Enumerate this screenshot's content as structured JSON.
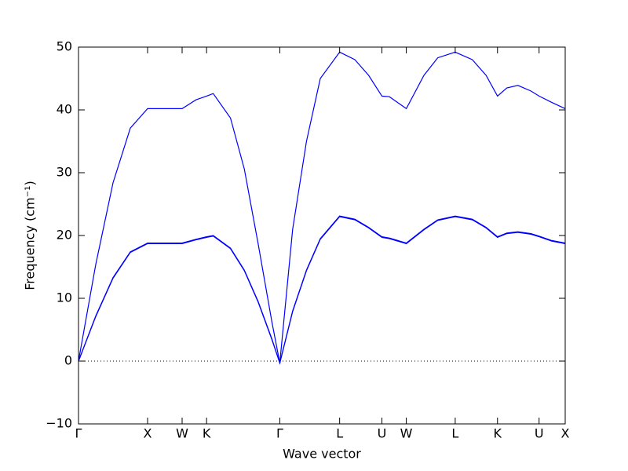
{
  "chart_data": {
    "type": "line",
    "xlabel": "Wave vector",
    "ylabel": "Frequency (cm⁻¹)",
    "x": [
      0,
      0.25,
      0.5,
      0.75,
      1,
      1.5,
      1.7,
      1.854,
      1.95,
      2.2,
      2.4,
      2.6,
      2.8,
      2.914,
      3.1,
      3.3,
      3.5,
      3.78,
      4.0,
      4.2,
      4.392,
      4.5,
      4.745,
      5.0,
      5.2,
      5.453,
      5.7,
      5.9,
      6.065,
      6.2,
      6.36,
      6.55,
      6.667,
      6.85,
      7.045
    ],
    "series": [
      {
        "color": "#0000ff",
        "values": [
          0,
          15.4,
          28.4,
          37.1,
          40.2,
          40.2,
          41.6,
          42.2,
          42.6,
          38.7,
          30.6,
          18.7,
          6.2,
          -0.3,
          21,
          35,
          45,
          49.2,
          48.0,
          45.5,
          42.2,
          42.1,
          40.2,
          45.5,
          48.3,
          49.2,
          48,
          45.5,
          42.2,
          43.5,
          43.9,
          43,
          42.2,
          41.2,
          40.2
        ]
      },
      {
        "color": "#0000ff",
        "values": [
          0,
          7.2,
          13.3,
          17.4,
          18.8,
          18.8,
          19.4,
          19.8,
          20.0,
          18,
          14.5,
          9.5,
          3.5,
          -0.3,
          8,
          14.5,
          19.5,
          23.1,
          22.6,
          21.3,
          19.8,
          19.6,
          18.8,
          21,
          22.5,
          23.1,
          22.6,
          21.3,
          19.8,
          20.4,
          20.6,
          20.3,
          19.9,
          19.2,
          18.8
        ]
      },
      {
        "color": "#0000ff",
        "values": [
          0,
          7.1,
          13.2,
          17.3,
          18.7,
          18.7,
          19.3,
          19.7,
          19.9,
          17.9,
          14.4,
          9.4,
          3.4,
          -0.3,
          7.9,
          14.4,
          19.4,
          23.0,
          22.5,
          21.2,
          19.7,
          19.5,
          18.7,
          20.9,
          22.4,
          23.0,
          22.5,
          21.2,
          19.7,
          20.3,
          20.5,
          20.2,
          19.8,
          19.1,
          18.7
        ]
      }
    ],
    "xlim": [
      0,
      7.045
    ],
    "xticks": [
      {
        "value": 0,
        "label": "Γ"
      },
      {
        "value": 1,
        "label": "X"
      },
      {
        "value": 1.5,
        "label": "W"
      },
      {
        "value": 1.854,
        "label": "K"
      },
      {
        "value": 2.914,
        "label": "Γ"
      },
      {
        "value": 3.78,
        "label": "L"
      },
      {
        "value": 4.392,
        "label": "U"
      },
      {
        "value": 4.745,
        "label": "W"
      },
      {
        "value": 5.453,
        "label": "L"
      },
      {
        "value": 6.065,
        "label": "K"
      },
      {
        "value": 6.667,
        "label": "U"
      },
      {
        "value": 7.045,
        "label": "X"
      }
    ],
    "ylim": [
      -10,
      50
    ],
    "yticks": [
      {
        "value": -10,
        "label": "−10"
      },
      0,
      10,
      20,
      30,
      40,
      50
    ],
    "zero_line": true
  }
}
